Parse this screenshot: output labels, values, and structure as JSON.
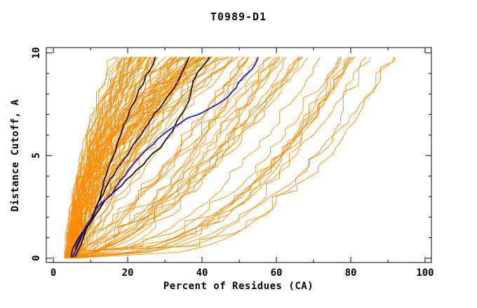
{
  "chart_data": {
    "type": "line",
    "title": "T0989-D1",
    "xlabel": "Percent of Residues (CA)",
    "ylabel": "Distance Cutoff, A",
    "xlim": [
      -1.9,
      101.7
    ],
    "ylim": [
      -0.21,
      10.26
    ],
    "x_major_ticks": [
      0,
      20,
      40,
      60,
      80,
      100
    ],
    "x_minor_ticks": [
      10,
      30,
      50,
      70,
      90
    ],
    "y_major_ticks": [
      0,
      5,
      10
    ],
    "y_minor_ticks": [
      1,
      2,
      3,
      4,
      6,
      7,
      8,
      9
    ],
    "grid": false,
    "legend": "none",
    "background": "#ffffff",
    "axis_color": "#000000",
    "series_highlight": [
      {
        "name": "model-black-1",
        "color": "#000000",
        "width": 1.7,
        "points": [
          [
            4.7,
            0.05
          ],
          [
            6.5,
            0.9
          ],
          [
            9.8,
            1.7
          ],
          [
            11.5,
            2.5
          ],
          [
            13.2,
            3.4
          ],
          [
            14.3,
            4.1
          ],
          [
            15.7,
            4.8
          ],
          [
            17.2,
            5.6
          ],
          [
            18.9,
            6.5
          ],
          [
            20.5,
            7.2
          ],
          [
            23.0,
            8.2
          ],
          [
            24.6,
            8.7
          ],
          [
            25.8,
            9.1
          ],
          [
            27.4,
            9.8
          ]
        ]
      },
      {
        "name": "model-black-2",
        "color": "#000000",
        "width": 1.7,
        "points": [
          [
            5.2,
            0.05
          ],
          [
            8.0,
            1.2
          ],
          [
            11.3,
            2.3
          ],
          [
            13.4,
            3.1
          ],
          [
            15.1,
            3.8
          ],
          [
            16.9,
            4.3
          ],
          [
            18.9,
            4.8
          ],
          [
            20.8,
            5.3
          ],
          [
            22.6,
            5.8
          ],
          [
            24.5,
            6.3
          ],
          [
            26.4,
            6.8
          ],
          [
            28.6,
            7.3
          ],
          [
            30.8,
            7.9
          ],
          [
            32.5,
            8.3
          ],
          [
            34.0,
            8.8
          ],
          [
            36.5,
            9.8
          ]
        ]
      },
      {
        "name": "model-black-3",
        "color": "#000000",
        "width": 1.7,
        "points": [
          [
            5.8,
            0.05
          ],
          [
            9.0,
            1.5
          ],
          [
            13.8,
            2.8
          ],
          [
            16.8,
            3.3
          ],
          [
            19.5,
            3.8
          ],
          [
            22.4,
            4.3
          ],
          [
            25.2,
            4.8
          ],
          [
            28.9,
            5.4
          ],
          [
            32.1,
            6.2
          ],
          [
            35.2,
            7.2
          ],
          [
            37.1,
            8.2
          ],
          [
            39.0,
            9.1
          ],
          [
            42.1,
            9.8
          ]
        ]
      },
      {
        "name": "model-blue",
        "color": "#2222dd",
        "width": 1.9,
        "points": [
          [
            5.0,
            0.05
          ],
          [
            6.0,
            0.6
          ],
          [
            8.5,
            1.5
          ],
          [
            10.8,
            2.2
          ],
          [
            13.0,
            2.7
          ],
          [
            15.7,
            3.1
          ],
          [
            18.0,
            3.8
          ],
          [
            20.2,
            4.3
          ],
          [
            22.5,
            4.8
          ],
          [
            25.1,
            5.3
          ],
          [
            28.0,
            5.8
          ],
          [
            30.8,
            6.2
          ],
          [
            33.5,
            6.5
          ],
          [
            35.8,
            6.8
          ],
          [
            39.0,
            7.0
          ],
          [
            42.1,
            7.3
          ],
          [
            45.8,
            7.7
          ],
          [
            48.0,
            8.1
          ],
          [
            49.6,
            8.5
          ],
          [
            51.5,
            8.9
          ],
          [
            53.4,
            9.2
          ],
          [
            55.1,
            9.8
          ]
        ]
      }
    ],
    "ensemble": {
      "name": "model-ensemble-orange",
      "color": "#ff8c00",
      "count": 120,
      "seed": 20989,
      "start_percent_range": [
        3.0,
        6.8
      ],
      "distance_range": [
        0.0,
        9.8
      ],
      "jitter": 1.5,
      "plateau_probability": 0.18,
      "groups": [
        {
          "weight": 0.68,
          "top": [
            17,
            50
          ],
          "q": [
            0.85,
            2.4
          ],
          "skew": 1.3
        },
        {
          "weight": 0.2,
          "top": [
            50,
            72
          ],
          "q": [
            0.5,
            1.0
          ],
          "skew": 1.0
        },
        {
          "weight": 0.12,
          "top": [
            70,
            93
          ],
          "q": [
            0.25,
            0.5
          ],
          "skew": 1.0
        }
      ],
      "description": "Approximately 120 orange model curves fanning out from ~3-7% of residues at distance cutoff 0 up to 17-93% of residues at distance cutoff ~9.8 A"
    }
  }
}
